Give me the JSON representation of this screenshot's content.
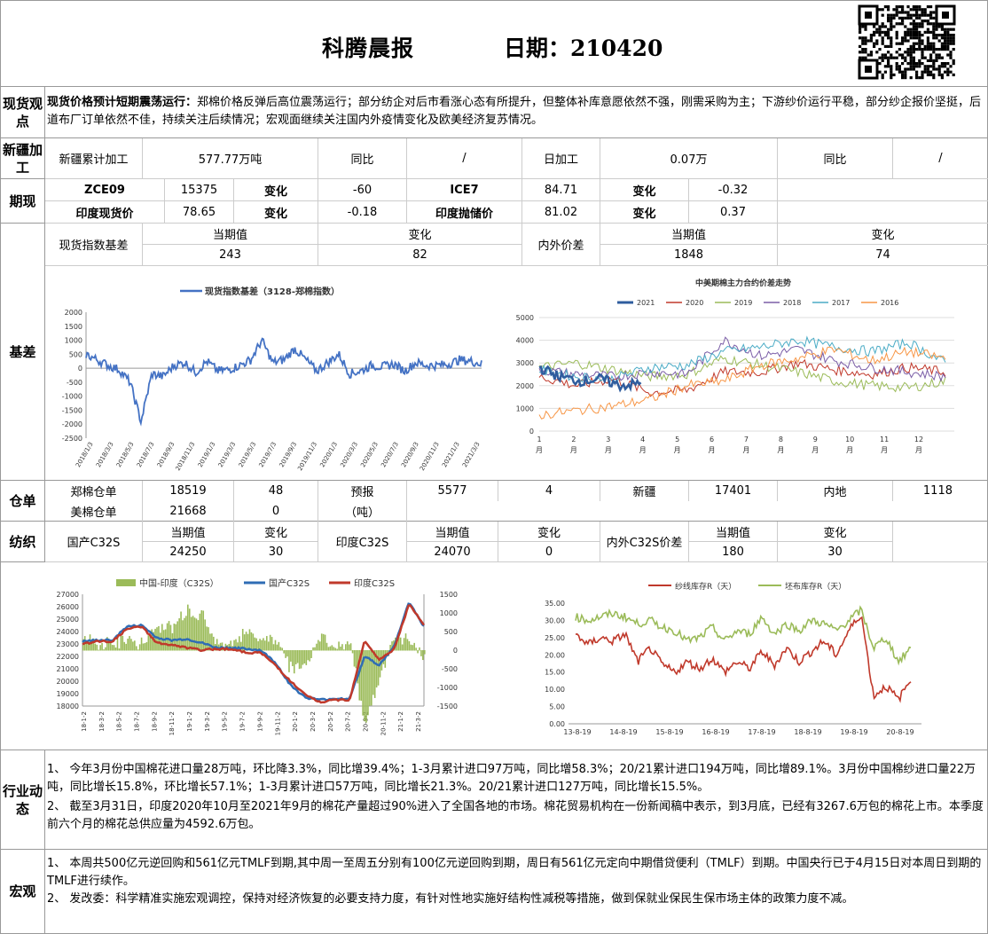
{
  "header": {
    "title": "科腾晨报",
    "date": "日期：210420"
  },
  "spot": {
    "label": "现货观点",
    "heading": "现货价格预计短期震荡运行：",
    "body": "郑棉价格反弹后高位震荡运行；部分纺企对后市看涨心态有所提升，但整体补库意愿依然不强，刚需采购为主；下游纱价运行平稳，部分纱企报价坚挺，后道布厂订单依然不佳，持续关注后续情况；宏观面继续关注国内外疫情变化及欧美经济复苏情况。"
  },
  "xinjiang": {
    "label": "新疆加工",
    "c1": "新疆累计加工",
    "c2": "577.77万吨",
    "c3": "同比",
    "c4": "/",
    "c5": "日加工",
    "c6": "0.07万",
    "c7": "同比",
    "c8": "/"
  },
  "futures": {
    "label": "期现",
    "r1": [
      "ZCE09",
      "15375",
      "变化",
      "-60",
      "ICE7",
      "84.71",
      "变化",
      "-0.32"
    ],
    "r2": [
      "印度现货价",
      "78.65",
      "变化",
      "-0.18",
      "印度抛储价",
      "81.02",
      "变化",
      "0.37"
    ]
  },
  "basis": {
    "label": "基差",
    "h1": "现货指数基差",
    "h2": "当期值",
    "h3": "变化",
    "h4": "内外价差",
    "h5": "当期值",
    "h6": "变化",
    "v2": "243",
    "v3": "82",
    "v5": "1848",
    "v6": "74"
  },
  "chart_basis": {
    "legend": "现货指数基差（3128-郑棉指数）",
    "yticks": [
      "2000",
      "1500",
      "1000",
      "500",
      "0",
      "-500",
      "-1000",
      "-1500",
      "-2000",
      "-2500"
    ],
    "xticks": [
      "2018/1/3",
      "2018/3/3",
      "2018/5/3",
      "2018/7/3",
      "2018/9/3",
      "2018/11/3",
      "2019/1/3",
      "2019/3/3",
      "2019/5/3",
      "2019/7/3",
      "2019/9/3",
      "2019/11/3",
      "2020/1/3",
      "2020/3/3",
      "2020/5/3",
      "2020/7/3",
      "2020/9/3",
      "2020/11/3",
      "2021/1/3",
      "2021/3/3"
    ]
  },
  "chart_spread": {
    "title": "中美期棉主力合约价差走势",
    "legend": [
      "2021",
      "2020",
      "2019",
      "2018",
      "2017",
      "2016"
    ],
    "colors": [
      "#2f5d9e",
      "#c0392b",
      "#9bbb59",
      "#7b5ea7",
      "#4bacc6",
      "#f79646"
    ],
    "yticks": [
      "5000",
      "4000",
      "3000",
      "2000",
      "1000",
      "0"
    ],
    "xticks": [
      "1月",
      "2月",
      "3月",
      "4月",
      "5月",
      "6月",
      "7月",
      "8月",
      "9月",
      "10月",
      "11月",
      "12月"
    ]
  },
  "warehouse": {
    "label": "仓单",
    "r1": [
      "郑棉仓单",
      "18519",
      "48",
      "预报",
      "5577",
      "4",
      "新疆",
      "17401",
      "内地",
      "1118"
    ],
    "r2": [
      "美棉仓单",
      "21668",
      "0",
      "（吨）"
    ]
  },
  "textile": {
    "label": "纺织",
    "h1": "国产C32S",
    "h2": "当期值",
    "h3": "变化",
    "h4": "印度C32S",
    "h5": "当期值",
    "h6": "变化",
    "h7": "内外C32S价差",
    "h8": "当期值",
    "h9": "变化",
    "v2": "24250",
    "v3": "30",
    "v5": "24070",
    "v6": "0",
    "v8": "180",
    "v9": "30"
  },
  "chart_yarn": {
    "legend": [
      "中国-印度（C32S）",
      "国产C32S",
      "印度C32S"
    ],
    "yleft": [
      "27000",
      "26000",
      "25000",
      "24000",
      "23000",
      "22000",
      "21000",
      "20000",
      "19000",
      "18000"
    ],
    "yright": [
      "1500",
      "1000",
      "500",
      "0",
      "-500",
      "-1000",
      "-1500"
    ],
    "xticks": [
      "18-1-2",
      "18-3-2",
      "18-5-2",
      "18-7-2",
      "18-9-2",
      "18-11-2",
      "19-1-2",
      "19-3-2",
      "19-5-2",
      "19-7-2",
      "19-9-2",
      "19-11-2",
      "20-1-2",
      "20-3-2",
      "20-5-2",
      "20-7-2",
      "20-9-2",
      "20-11-2",
      "21-1-2",
      "21-3-2"
    ]
  },
  "chart_stock": {
    "legend": [
      "纱线库存R（天）",
      "坯布库存R（天）"
    ],
    "yticks": [
      "35.00",
      "30.00",
      "25.00",
      "20.00",
      "15.00",
      "10.00",
      "5.00",
      "0.00"
    ],
    "xticks": [
      "13-8-19",
      "14-8-19",
      "15-8-19",
      "16-8-19",
      "17-8-19",
      "18-8-19",
      "19-8-19",
      "20-8-19"
    ]
  },
  "industry": {
    "label": "行业动态",
    "p1": "1、 今年3月份中国棉花进口量28万吨，环比降3.3%，同比增39.4%；1-3月累计进口97万吨，同比增58.3%；20/21累计进口194万吨，同比增89.1%。3月份中国棉纱进口量22万吨，同比增长15.8%，环比增长57.1%；1-3月累计进口57万吨，同比增长21.3%。20/21累计进口127万吨，同比增长15.5%。",
    "p2": "2、 截至3月31日，印度2020年10月至2021年9月的棉花产量超过90%进入了全国各地的市场。棉花贸易机构在一份新闻稿中表示，到3月底，已经有3267.6万包的棉花上市。本季度前六个月的棉花总供应量为4592.6万包。"
  },
  "macro": {
    "label": "宏观",
    "p1": "1、 本周共500亿元逆回购和561亿元TMLF到期,其中周一至周五分别有100亿元逆回购到期，周日有561亿元定向中期借贷便利（TMLF）到期。中国央行已于4月15日对本周日到期的TMLF进行续作。",
    "p2": "2、 发改委：科学精准实施宏观调控，保持对经济恢复的必要支持力度，有针对性地实施好结构性减税等措施，做到保就业保民生保市场主体的政策力度不减。"
  }
}
